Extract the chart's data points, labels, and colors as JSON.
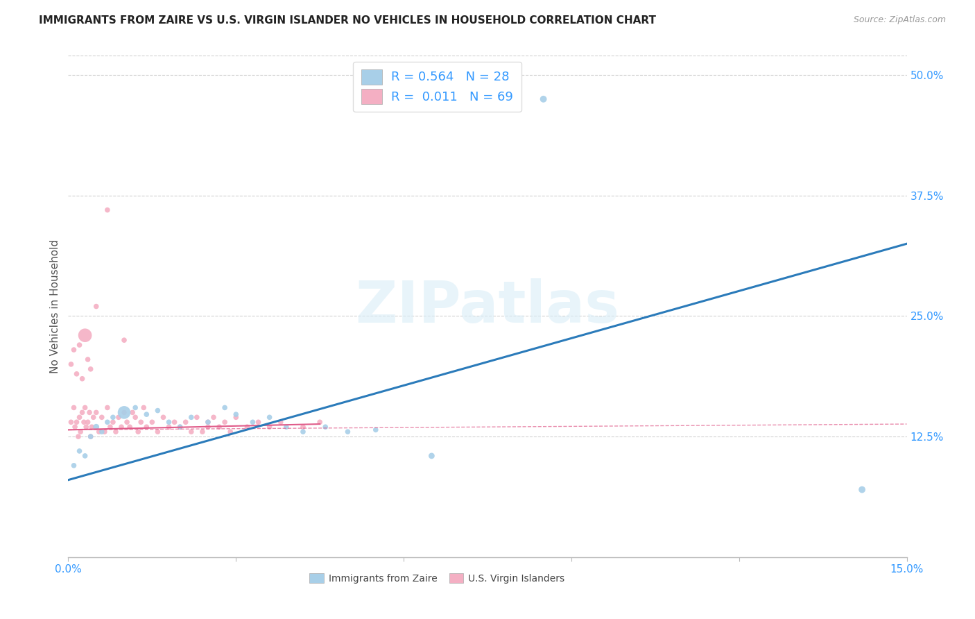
{
  "title": "IMMIGRANTS FROM ZAIRE VS U.S. VIRGIN ISLANDER NO VEHICLES IN HOUSEHOLD CORRELATION CHART",
  "source": "Source: ZipAtlas.com",
  "ylabel": "No Vehicles in Household",
  "xlim": [
    0.0,
    15.0
  ],
  "ylim": [
    0.0,
    52.0
  ],
  "y_tick_values_right": [
    12.5,
    25.0,
    37.5,
    50.0
  ],
  "blue_color": "#a8cfe8",
  "pink_color": "#f4afc3",
  "blue_line_color": "#2b7bba",
  "pink_line_color": "#e05c8a",
  "legend_r1": "R = 0.564",
  "legend_n1": "N = 28",
  "legend_r2": "R =  0.011",
  "legend_n2": "N = 69",
  "watermark": "ZIPatlas",
  "blue_scatter_x": [
    0.1,
    0.2,
    0.3,
    0.4,
    0.5,
    0.6,
    0.7,
    0.8,
    1.0,
    1.2,
    1.4,
    1.6,
    1.8,
    2.0,
    2.2,
    2.5,
    2.8,
    3.0,
    3.3,
    3.6,
    3.9,
    4.2,
    4.6,
    5.0,
    5.5,
    6.5,
    8.5,
    14.2
  ],
  "blue_scatter_y": [
    9.5,
    11.0,
    10.5,
    12.5,
    13.5,
    13.0,
    14.0,
    14.5,
    15.0,
    15.5,
    14.8,
    15.2,
    14.0,
    13.5,
    14.5,
    14.0,
    15.5,
    14.8,
    14.0,
    14.5,
    13.5,
    13.0,
    13.5,
    13.0,
    13.2,
    10.5,
    47.5,
    7.0
  ],
  "blue_scatter_sizes": [
    30,
    30,
    30,
    30,
    40,
    30,
    30,
    30,
    180,
    30,
    30,
    30,
    30,
    30,
    30,
    30,
    30,
    30,
    30,
    30,
    30,
    30,
    30,
    30,
    30,
    40,
    50,
    50
  ],
  "pink_scatter_x": [
    0.05,
    0.1,
    0.12,
    0.15,
    0.18,
    0.2,
    0.22,
    0.25,
    0.28,
    0.3,
    0.32,
    0.35,
    0.38,
    0.4,
    0.42,
    0.45,
    0.5,
    0.55,
    0.6,
    0.65,
    0.7,
    0.75,
    0.8,
    0.85,
    0.9,
    0.95,
    1.0,
    1.05,
    1.1,
    1.15,
    1.2,
    1.25,
    1.3,
    1.35,
    1.4,
    1.5,
    1.6,
    1.7,
    1.8,
    1.9,
    2.0,
    2.1,
    2.2,
    2.3,
    2.4,
    2.5,
    2.6,
    2.7,
    2.8,
    2.9,
    3.0,
    3.2,
    3.4,
    3.6,
    3.8,
    4.2,
    0.05,
    0.1,
    0.15,
    0.2,
    0.25,
    0.3,
    0.35,
    0.4,
    0.5,
    0.7,
    1.0,
    2.5,
    4.5
  ],
  "pink_scatter_y": [
    14.0,
    15.5,
    13.5,
    14.0,
    12.5,
    14.5,
    13.0,
    15.0,
    14.0,
    15.5,
    13.5,
    14.0,
    15.0,
    12.5,
    13.5,
    14.5,
    15.0,
    13.0,
    14.5,
    13.0,
    15.5,
    13.5,
    14.0,
    13.0,
    14.5,
    13.5,
    15.0,
    14.0,
    13.5,
    15.0,
    14.5,
    13.0,
    14.0,
    15.5,
    13.5,
    14.0,
    13.0,
    14.5,
    13.5,
    14.0,
    13.5,
    14.0,
    13.0,
    14.5,
    13.0,
    14.0,
    14.5,
    13.5,
    14.0,
    13.0,
    14.5,
    13.5,
    14.0,
    13.5,
    14.0,
    13.5,
    20.0,
    21.5,
    19.0,
    22.0,
    18.5,
    23.0,
    20.5,
    19.5,
    26.0,
    36.0,
    22.5,
    13.5,
    14.0
  ],
  "pink_scatter_sizes": [
    30,
    30,
    30,
    30,
    30,
    30,
    30,
    30,
    30,
    30,
    30,
    30,
    30,
    30,
    30,
    30,
    30,
    30,
    30,
    30,
    30,
    30,
    30,
    30,
    30,
    30,
    30,
    30,
    30,
    30,
    30,
    30,
    30,
    30,
    30,
    30,
    30,
    30,
    30,
    30,
    30,
    30,
    30,
    30,
    30,
    30,
    30,
    30,
    30,
    30,
    30,
    30,
    30,
    30,
    30,
    30,
    30,
    30,
    30,
    30,
    30,
    200,
    30,
    30,
    30,
    30,
    30,
    30,
    30
  ],
  "blue_line_x0": 0.0,
  "blue_line_y0": 8.0,
  "blue_line_x1": 15.0,
  "blue_line_y1": 32.5,
  "pink_solid_x0": 0.0,
  "pink_solid_y0": 13.2,
  "pink_solid_x1": 4.5,
  "pink_solid_y1": 13.8,
  "pink_dash_x0": 0.0,
  "pink_dash_y0": 13.2,
  "pink_dash_x1": 15.0,
  "pink_dash_y1": 13.8,
  "title_color": "#222222",
  "axis_label_color": "#555555",
  "tick_color": "#3399ff",
  "grid_color": "#d0d0d0"
}
